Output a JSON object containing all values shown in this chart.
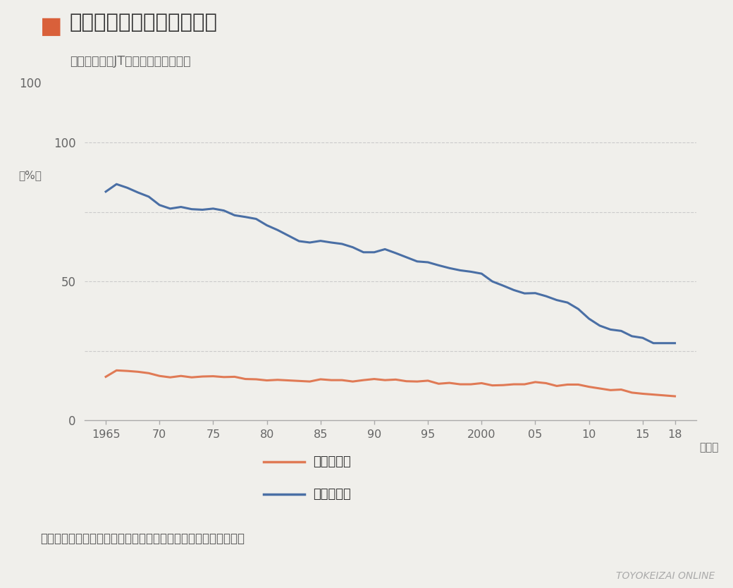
{
  "title": "性別・年代別喫煙率の推移",
  "title_color": "#333333",
  "subtitle": "成人喫煙率（JT全国喫煙者率調査）",
  "source_text": "（出所）日本専売公社、日本たばこ産業株式会社による調査より",
  "watermark": "TOYOKEIZAI ONLINE",
  "xlabel_suffix": "（年）",
  "ylabel": "（%）",
  "background_color": "#f0efeb",
  "plot_bg_color": "#f0efeb",
  "grid_color": "#c8c8c8",
  "title_square_color": "#d9603a",
  "years": [
    1965,
    1966,
    1967,
    1968,
    1969,
    1970,
    1971,
    1972,
    1973,
    1974,
    1975,
    1976,
    1977,
    1978,
    1979,
    1980,
    1981,
    1982,
    1983,
    1984,
    1985,
    1986,
    1987,
    1988,
    1989,
    1990,
    1991,
    1992,
    1993,
    1994,
    1995,
    1996,
    1997,
    1998,
    1999,
    2000,
    2001,
    2002,
    2003,
    2004,
    2005,
    2006,
    2007,
    2008,
    2009,
    2010,
    2011,
    2012,
    2013,
    2014,
    2015,
    2016,
    2017,
    2018
  ],
  "male": [
    82.3,
    85.0,
    83.7,
    82.0,
    80.5,
    77.5,
    76.2,
    76.8,
    76.0,
    75.8,
    76.2,
    75.5,
    73.8,
    73.2,
    72.5,
    70.2,
    68.5,
    66.5,
    64.5,
    64.0,
    64.6,
    64.0,
    63.5,
    62.3,
    60.5,
    60.5,
    61.6,
    60.2,
    58.7,
    57.2,
    56.9,
    55.8,
    54.8,
    54.0,
    53.5,
    52.8,
    50.0,
    48.5,
    46.9,
    45.7,
    45.8,
    44.7,
    43.3,
    42.4,
    40.1,
    36.6,
    34.1,
    32.7,
    32.2,
    30.3,
    29.7,
    27.8,
    27.8,
    27.8
  ],
  "female": [
    15.7,
    18.0,
    17.8,
    17.5,
    17.0,
    16.0,
    15.5,
    16.0,
    15.5,
    15.8,
    15.9,
    15.6,
    15.7,
    14.9,
    14.8,
    14.4,
    14.6,
    14.4,
    14.2,
    14.0,
    14.8,
    14.5,
    14.5,
    14.0,
    14.5,
    14.9,
    14.5,
    14.7,
    14.1,
    14.0,
    14.3,
    13.2,
    13.5,
    13.0,
    13.0,
    13.4,
    12.6,
    12.7,
    13.0,
    13.0,
    13.8,
    13.4,
    12.4,
    12.9,
    12.9,
    12.1,
    11.5,
    10.9,
    11.1,
    10.0,
    9.6,
    9.3,
    9.0,
    8.7
  ],
  "male_color": "#4a6fa5",
  "female_color": "#e07a55",
  "line_width": 2.2,
  "ylim": [
    0,
    110
  ],
  "yticks": [
    0,
    50,
    100
  ],
  "xtick_labels": [
    "1965",
    "70",
    "75",
    "80",
    "85",
    "90",
    "95",
    "2000",
    "05",
    "10",
    "15",
    "18"
  ],
  "xtick_positions": [
    1965,
    1970,
    1975,
    1980,
    1985,
    1990,
    1995,
    2000,
    2005,
    2010,
    2015,
    2018
  ],
  "legend_female": "全年齢　女",
  "legend_male": "全年齢　男"
}
